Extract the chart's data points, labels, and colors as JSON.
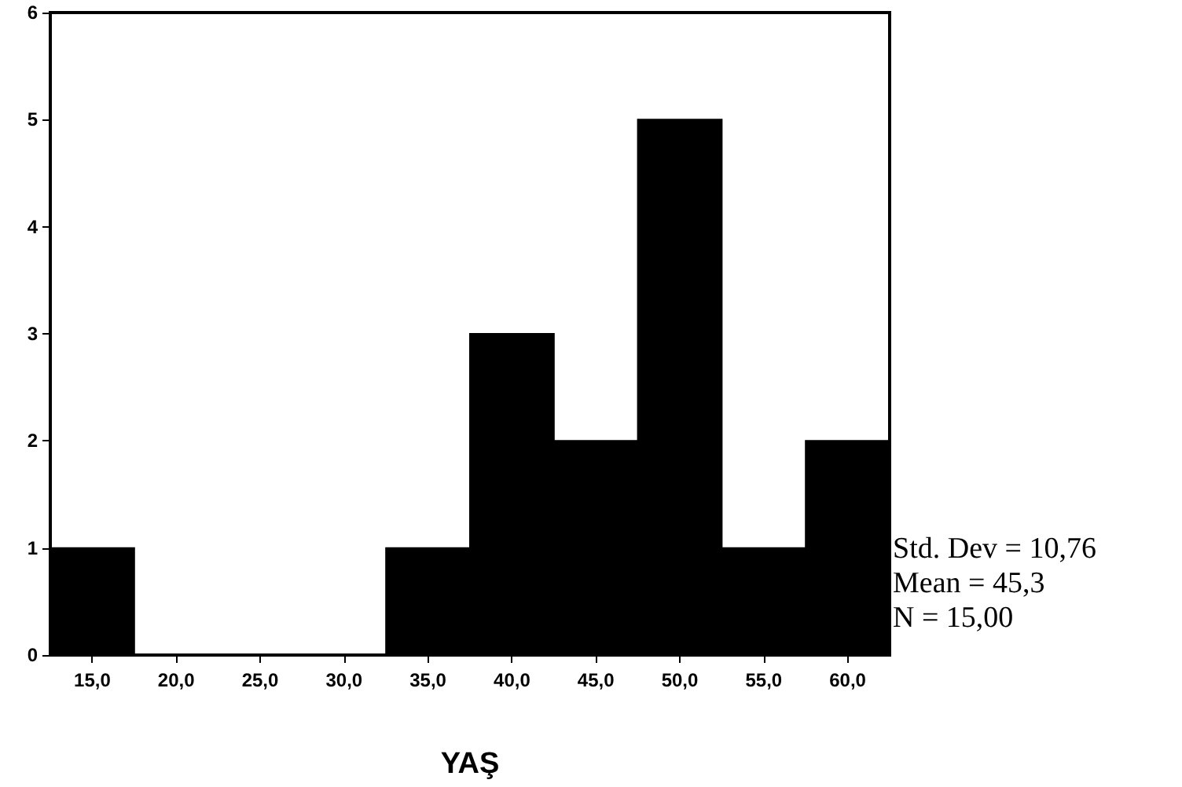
{
  "chart_data": {
    "type": "histogram",
    "xlabel": "YAŞ",
    "color": "#000000",
    "bins": [
      12.5,
      17.5,
      22.5,
      27.5,
      32.5,
      37.5,
      42.5,
      47.5,
      52.5,
      57.5,
      62.5
    ],
    "values": [
      1,
      0,
      0,
      0,
      1,
      3,
      2,
      5,
      1,
      2
    ],
    "xlim": [
      12.5,
      62.5
    ],
    "xticks": [
      {
        "value": 15,
        "label": "15,0"
      },
      {
        "value": 20,
        "label": "20,0"
      },
      {
        "value": 25,
        "label": "25,0"
      },
      {
        "value": 30,
        "label": "30,0"
      },
      {
        "value": 35,
        "label": "35,0"
      },
      {
        "value": 40,
        "label": "40,0"
      },
      {
        "value": 45,
        "label": "45,0"
      },
      {
        "value": 50,
        "label": "50,0"
      },
      {
        "value": 55,
        "label": "55,0"
      },
      {
        "value": 60,
        "label": "60,0"
      }
    ],
    "ylim": [
      0,
      6
    ],
    "yticks": [
      0,
      1,
      2,
      3,
      4,
      5,
      6
    ],
    "annotations": [
      "Std. Dev = 10,76",
      "Mean = 45,3",
      "N = 15,00"
    ]
  }
}
